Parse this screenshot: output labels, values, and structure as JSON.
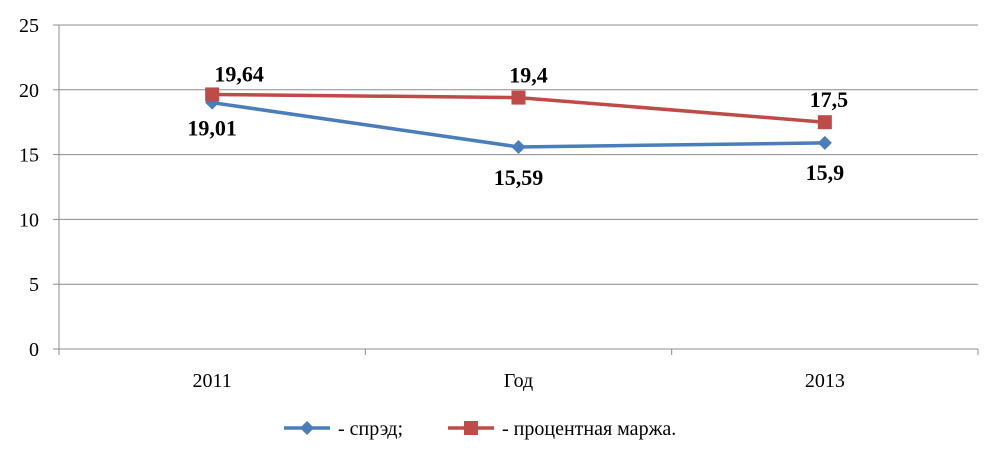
{
  "chart_data": {
    "type": "line",
    "categories": [
      "2011",
      "Год",
      "2013"
    ],
    "ylim": [
      0,
      25
    ],
    "yticks": [
      0,
      5,
      10,
      15,
      20,
      25
    ],
    "ytick_labels": [
      "0",
      "5",
      "10",
      "15",
      "20",
      "25"
    ],
    "grid": true,
    "legend_position": "bottom",
    "series": [
      {
        "name": "- спрэд;",
        "color": "#4a7ebb",
        "marker": "diamond",
        "values": [
          19.01,
          15.59,
          15.9
        ],
        "labels": [
          "19,01",
          "15,59",
          "15,9"
        ]
      },
      {
        "name": "- процентная маржа.",
        "color": "#be4b48",
        "marker": "square",
        "values": [
          19.64,
          19.4,
          17.5
        ],
        "labels": [
          "19,64",
          "19,4",
          "17,5"
        ]
      }
    ]
  }
}
